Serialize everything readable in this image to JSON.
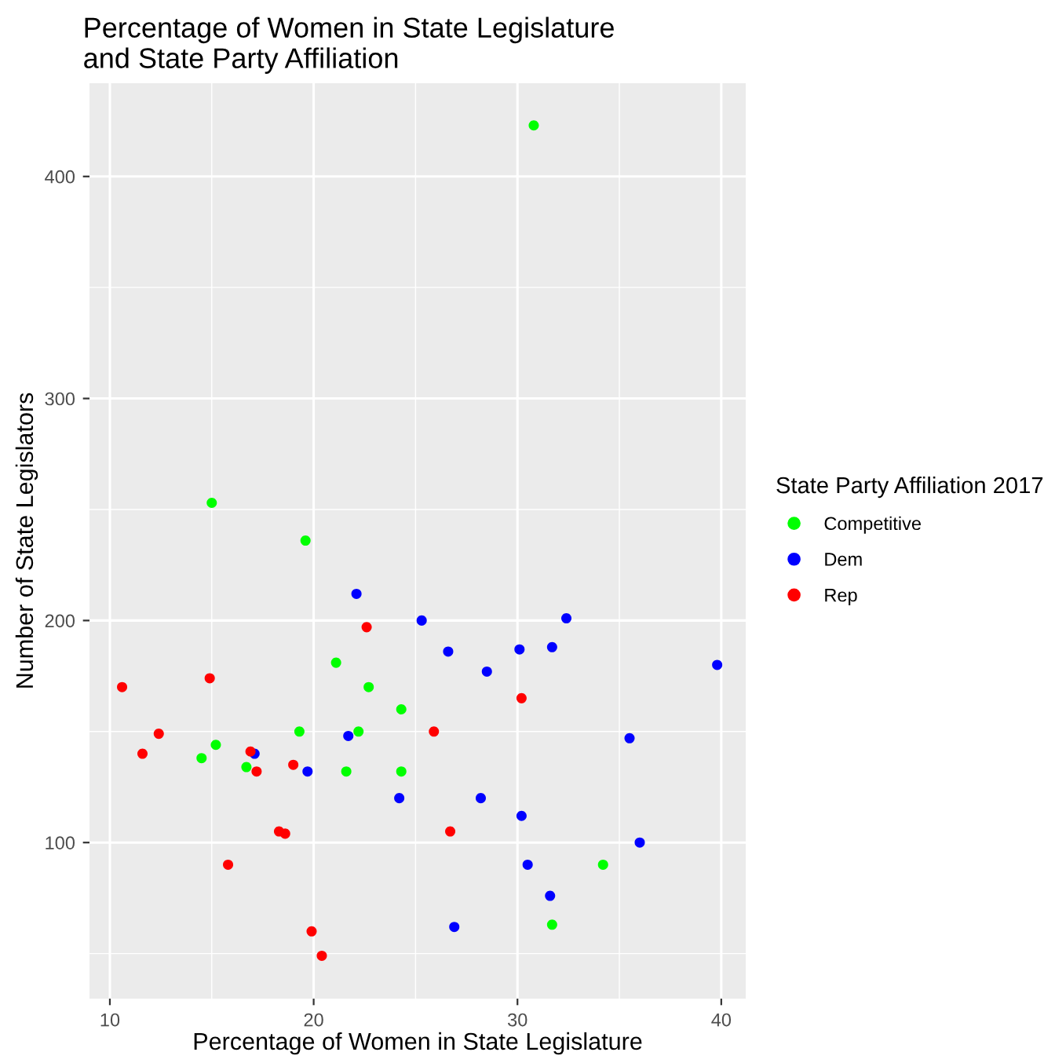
{
  "chart_data": {
    "type": "scatter",
    "title": "Percentage of Women in State Legislature\nand State Party Affiliation",
    "xlabel": "Percentage of Women in State Legislature",
    "ylabel": "Number of State Legislators",
    "legend_title": "State Party Affiliation 2017",
    "xlim": [
      9.0,
      41.2
    ],
    "ylim": [
      29.7,
      442
    ],
    "xticks": [
      10,
      20,
      30,
      40
    ],
    "yticks": [
      100,
      200,
      300,
      400
    ],
    "grid": true,
    "legend": "right",
    "marker": "circle",
    "series": [
      {
        "name": "Competitive",
        "color": "#00ff00",
        "x": [
          15.0,
          19.6,
          30.8,
          21.1,
          22.7,
          24.3,
          22.2,
          19.3,
          15.2,
          14.5,
          16.7,
          21.6,
          24.3,
          34.2,
          31.7
        ],
        "values": [
          253,
          236,
          423,
          181,
          170,
          160,
          150,
          150,
          144,
          138,
          134,
          132,
          132,
          90,
          63
        ]
      },
      {
        "name": "Dem",
        "color": "#0000ff",
        "x": [
          22.1,
          25.3,
          32.4,
          26.6,
          30.1,
          31.7,
          28.5,
          39.8,
          21.7,
          17.1,
          19.7,
          35.5,
          24.2,
          28.2,
          30.2,
          36.0,
          30.5,
          31.6,
          26.9
        ],
        "values": [
          212,
          200,
          201,
          186,
          187,
          188,
          177,
          180,
          148,
          140,
          132,
          147,
          120,
          120,
          112,
          100,
          90,
          76,
          62
        ]
      },
      {
        "name": "Rep",
        "color": "#ff0000",
        "x": [
          10.6,
          14.9,
          22.6,
          30.2,
          12.4,
          25.9,
          11.6,
          16.9,
          17.2,
          19.0,
          18.3,
          18.6,
          26.7,
          15.8,
          19.9,
          20.4
        ],
        "values": [
          170,
          174,
          197,
          165,
          149,
          150,
          140,
          141,
          132,
          135,
          105,
          104,
          105,
          90,
          60,
          49
        ]
      }
    ]
  }
}
